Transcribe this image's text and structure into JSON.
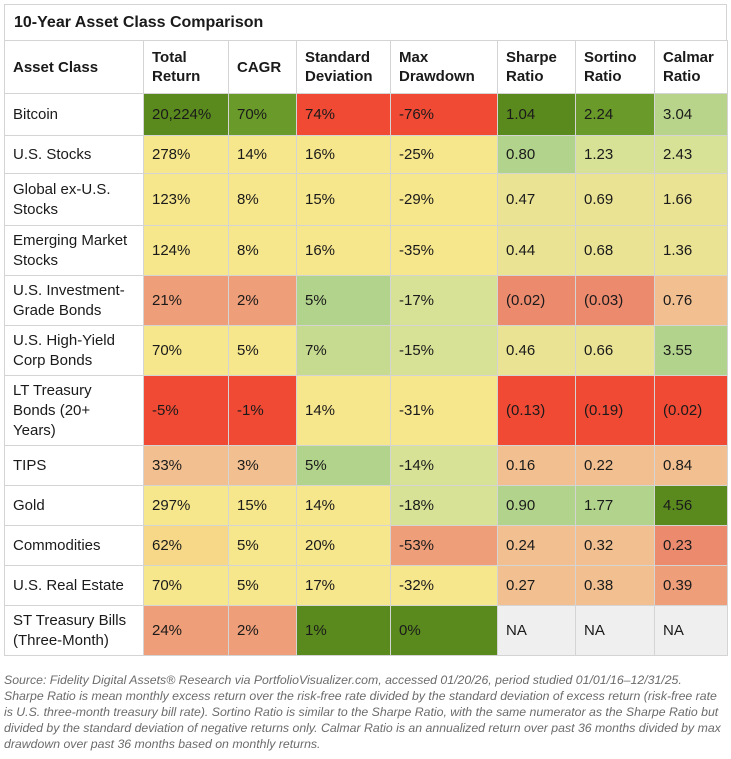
{
  "chart_data": {
    "type": "table",
    "title": "10-Year Asset Class Comparison",
    "columns": [
      "Asset Class",
      "Total Return",
      "CAGR",
      "Standard Deviation",
      "Max Drawdown",
      "Sharpe Ratio",
      "Sortino Ratio",
      "Calmar Ratio"
    ],
    "rows": [
      {
        "asset": "Bitcoin",
        "values": [
          "20,224%",
          "70%",
          "74%",
          "-76%",
          "1.04",
          "2.24",
          "3.04"
        ],
        "colors": [
          "#5a8a1e",
          "#6a9a2a",
          "#f04a35",
          "#f04a35",
          "#5a8a1e",
          "#6a9a2a",
          "#b8d48a"
        ]
      },
      {
        "asset": "U.S. Stocks",
        "values": [
          "278%",
          "14%",
          "16%",
          "-25%",
          "0.80",
          "1.23",
          "2.43"
        ],
        "colors": [
          "#f6e68c",
          "#f6e68c",
          "#f6e68c",
          "#f6e68c",
          "#b2d38c",
          "#d7e296",
          "#d7e296"
        ]
      },
      {
        "asset": "Global ex-U.S. Stocks",
        "values": [
          "123%",
          "8%",
          "15%",
          "-29%",
          "0.47",
          "0.69",
          "1.66"
        ],
        "colors": [
          "#f6e68c",
          "#f6e68c",
          "#f6e68c",
          "#f6e68c",
          "#eae394",
          "#eae394",
          "#eae394"
        ]
      },
      {
        "asset": "Emerging Market Stocks",
        "values": [
          "124%",
          "8%",
          "16%",
          "-35%",
          "0.44",
          "0.68",
          "1.36"
        ],
        "colors": [
          "#f6e68c",
          "#f6e68c",
          "#f6e68c",
          "#f6e68c",
          "#eae394",
          "#eae394",
          "#eae394"
        ]
      },
      {
        "asset": "U.S. Investment-Grade Bonds",
        "values": [
          "21%",
          "2%",
          "5%",
          "-17%",
          "(0.02)",
          "(0.03)",
          "0.76"
        ],
        "colors": [
          "#ee9e78",
          "#ee9e78",
          "#b2d38c",
          "#d7e296",
          "#ec8a6e",
          "#ec8a6e",
          "#f2c090"
        ]
      },
      {
        "asset": "U.S. High-Yield Corp Bonds",
        "values": [
          "70%",
          "5%",
          "7%",
          "-15%",
          "0.46",
          "0.66",
          "3.55"
        ],
        "colors": [
          "#f6e68c",
          "#f6e68c",
          "#c7db90",
          "#d7e296",
          "#eae394",
          "#eae394",
          "#b2d38c"
        ]
      },
      {
        "asset": "LT Treasury Bonds (20+ Years)",
        "values": [
          "-5%",
          "-1%",
          "14%",
          "-31%",
          "(0.13)",
          "(0.19)",
          "(0.02)"
        ],
        "colors": [
          "#f04a35",
          "#f04a35",
          "#f6e68c",
          "#f6e68c",
          "#f04a35",
          "#f04a35",
          "#f04a35"
        ]
      },
      {
        "asset": "TIPS",
        "values": [
          "33%",
          "3%",
          "5%",
          "-14%",
          "0.16",
          "0.22",
          "0.84"
        ],
        "colors": [
          "#f2c090",
          "#f2c090",
          "#b2d38c",
          "#d7e296",
          "#f2c090",
          "#f2c090",
          "#f2c090"
        ]
      },
      {
        "asset": "Gold",
        "values": [
          "297%",
          "15%",
          "14%",
          "-18%",
          "0.90",
          "1.77",
          "4.56"
        ],
        "colors": [
          "#f6e68c",
          "#f6e68c",
          "#f6e68c",
          "#d7e296",
          "#b2d38c",
          "#b2d38c",
          "#5a8a1e"
        ]
      },
      {
        "asset": "Commodities",
        "values": [
          "62%",
          "5%",
          "20%",
          "-53%",
          "0.24",
          "0.32",
          "0.23"
        ],
        "colors": [
          "#f6d888",
          "#f6e68c",
          "#f6e68c",
          "#ee9e78",
          "#f2c090",
          "#f2c090",
          "#ec8a6e"
        ]
      },
      {
        "asset": "U.S. Real Estate",
        "values": [
          "70%",
          "5%",
          "17%",
          "-32%",
          "0.27",
          "0.38",
          "0.39"
        ],
        "colors": [
          "#f6e68c",
          "#f6e68c",
          "#f6e68c",
          "#f6e68c",
          "#f2c090",
          "#f2c090",
          "#ee9e78"
        ]
      },
      {
        "asset": "ST Treasury Bills (Three-Month)",
        "values": [
          "24%",
          "2%",
          "1%",
          "0%",
          "NA",
          "NA",
          "NA"
        ],
        "colors": [
          "#ee9e78",
          "#ee9e78",
          "#5a8a1e",
          "#5a8a1e",
          "#efefef",
          "#efefef",
          "#efefef"
        ]
      }
    ]
  },
  "footnote": "Source: Fidelity Digital Assets® Research via PortfolioVisualizer.com, accessed 01/20/26, period studied 01/01/16–12/31/25. Sharpe Ratio is mean monthly excess return over the risk-free rate divided by the standard deviation of excess return (risk-free rate is U.S. three-month treasury bill rate). Sortino Ratio is similar to the Sharpe Ratio, with the same numerator as the Sharpe Ratio but divided by the standard deviation of negative returns only. Calmar Ratio is an annualized return over past 36 months divided by max drawdown over past 36 months based on monthly returns."
}
